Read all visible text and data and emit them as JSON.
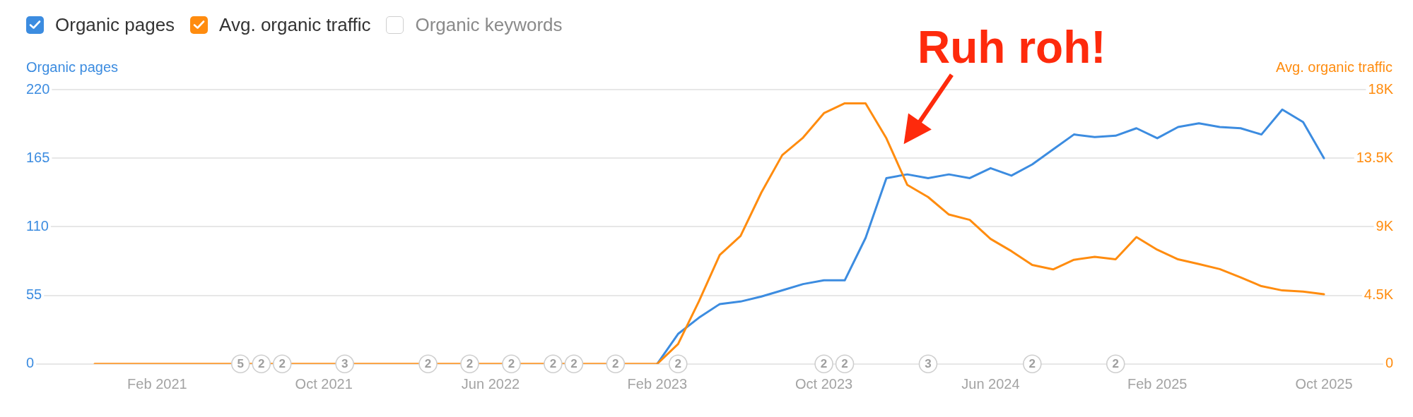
{
  "chart_data": {
    "type": "line",
    "ylabel": "Organic pages",
    "y2label": "Avg. organic traffic",
    "annotations": [
      "Ruh roh!",
      {
        "text": "5",
        "x": "2021-06"
      },
      {
        "text": "2",
        "x": "2021-07"
      },
      {
        "text": "2",
        "x": "2021-08"
      },
      {
        "text": "3",
        "x": "2021-11"
      },
      {
        "text": "2",
        "x": "2022-03"
      },
      {
        "text": "2",
        "x": "2022-05"
      },
      {
        "text": "2",
        "x": "2022-07"
      },
      {
        "text": "2",
        "x": "2022-09"
      },
      {
        "text": "2",
        "x": "2022-10"
      },
      {
        "text": "2",
        "x": "2022-12"
      },
      {
        "text": "2",
        "x": "2023-03"
      },
      {
        "text": "2",
        "x": "2023-10"
      },
      {
        "text": "2",
        "x": "2023-11"
      },
      {
        "text": "3",
        "x": "2024-03"
      },
      {
        "text": "2",
        "x": "2024-08"
      },
      {
        "text": "2",
        "x": "2024-12"
      }
    ],
    "x": [
      "2020-11",
      "2020-12",
      "2021-01",
      "2021-02",
      "2021-03",
      "2021-04",
      "2021-05",
      "2021-06",
      "2021-07",
      "2021-08",
      "2021-09",
      "2021-10",
      "2021-11",
      "2021-12",
      "2022-01",
      "2022-02",
      "2022-03",
      "2022-04",
      "2022-05",
      "2022-06",
      "2022-07",
      "2022-08",
      "2022-09",
      "2022-10",
      "2022-11",
      "2022-12",
      "2023-01",
      "2023-02",
      "2023-03",
      "2023-04",
      "2023-05",
      "2023-06",
      "2023-07",
      "2023-08",
      "2023-09",
      "2023-10",
      "2023-11",
      "2023-12",
      "2024-01",
      "2024-02",
      "2024-03",
      "2024-04",
      "2024-05",
      "2024-06",
      "2024-07",
      "2024-08",
      "2024-09",
      "2024-10",
      "2024-11",
      "2024-12",
      "2025-01",
      "2025-02",
      "2025-03",
      "2025-04",
      "2025-05",
      "2025-06",
      "2025-07",
      "2025-08",
      "2025-09",
      "2025-10"
    ],
    "series": [
      {
        "name": "Organic pages",
        "color": "#3c8ce0",
        "values": [
          null,
          null,
          null,
          null,
          null,
          null,
          null,
          null,
          null,
          null,
          null,
          null,
          null,
          null,
          null,
          null,
          null,
          null,
          null,
          null,
          null,
          null,
          null,
          null,
          null,
          null,
          null,
          0,
          24,
          37,
          48,
          50,
          54,
          59,
          64,
          67,
          67,
          101,
          149,
          152,
          149,
          152,
          149,
          157,
          151,
          160,
          172,
          184,
          182,
          183,
          189,
          181,
          190,
          193,
          190,
          189,
          184,
          204,
          194,
          165
        ]
      },
      {
        "name": "Avg. organic traffic",
        "color": "#ff8c0f",
        "axis": "y2",
        "values": [
          0,
          0,
          0,
          0,
          0,
          0,
          0,
          0,
          0,
          0,
          0,
          0,
          0,
          0,
          0,
          0,
          0,
          0,
          0,
          0,
          0,
          0,
          0,
          0,
          0,
          0,
          0,
          0,
          1300,
          4100,
          7150,
          8400,
          11250,
          13700,
          14850,
          16450,
          17100,
          17100,
          14800,
          11750,
          10950,
          9800,
          9450,
          8200,
          7400,
          6490,
          6200,
          6830,
          7030,
          6860,
          8320,
          7490,
          6860,
          6550,
          6220,
          5680,
          5100,
          4820,
          4740,
          4570
        ]
      },
      {
        "name": "Organic keywords",
        "values": [
          null,
          null,
          null,
          null,
          null,
          null,
          null,
          null,
          null,
          null,
          null,
          null,
          null,
          null,
          null,
          null,
          null,
          null,
          null,
          null,
          null,
          null,
          null,
          null,
          null,
          null,
          null,
          null,
          null,
          null,
          null,
          null,
          null,
          null,
          null,
          null,
          null,
          null,
          null,
          null,
          null,
          null,
          null,
          null,
          null,
          null,
          null,
          null,
          null,
          null,
          null,
          null,
          null,
          null,
          null,
          null,
          null,
          null,
          null,
          null
        ]
      }
    ],
    "xlim": [
      "2020-07-22",
      "2026-01-10"
    ],
    "xticks": [
      {
        "value": "2021-02",
        "label": "Feb 2021"
      },
      {
        "value": "2021-10",
        "label": "Oct 2021"
      },
      {
        "value": "2022-06",
        "label": "Jun 2022"
      },
      {
        "value": "2023-02",
        "label": "Feb 2023"
      },
      {
        "value": "2023-10",
        "label": "Oct 2023"
      },
      {
        "value": "2024-06",
        "label": "Jun 2024"
      },
      {
        "value": "2025-02",
        "label": "Feb 2025"
      },
      {
        "value": "2025-10",
        "label": "Oct 2025"
      }
    ],
    "ylim": [
      0,
      220
    ],
    "yticks": [
      0,
      55,
      110,
      165,
      220
    ],
    "y2lim": [
      0,
      18000
    ],
    "y2ticks": [
      0,
      {
        "value": 4500,
        "label": "4.5K"
      },
      {
        "value": 9000,
        "label": "9K"
      },
      {
        "value": 13500,
        "label": "13.5K"
      },
      {
        "value": 18000,
        "label": "18K"
      }
    ],
    "grid": "y",
    "legend": "top left"
  }
}
